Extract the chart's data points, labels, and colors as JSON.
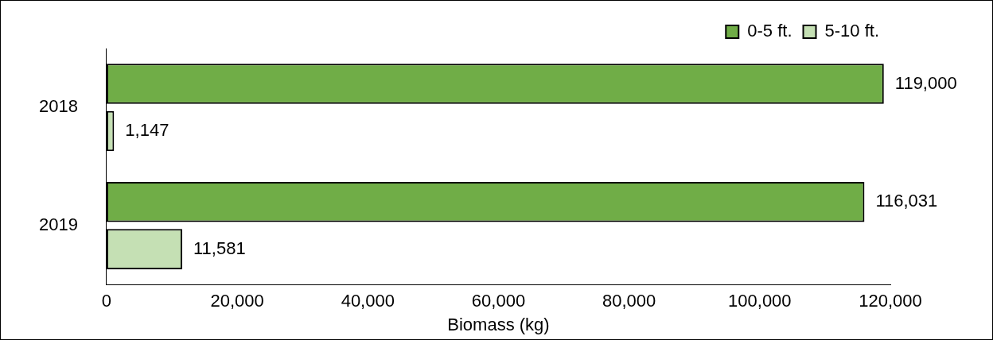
{
  "chart_data": {
    "type": "bar",
    "orientation": "horizontal",
    "categories": [
      "2018",
      "2019"
    ],
    "series": [
      {
        "name": "0-5 ft.",
        "color": "#70ad47",
        "values": [
          119000,
          116031
        ],
        "value_labels": [
          "119,000",
          "116,031"
        ]
      },
      {
        "name": "5-10 ft.",
        "color": "#c5e0b4",
        "values": [
          1147,
          11581
        ],
        "value_labels": [
          "1,147",
          "11,581"
        ]
      }
    ],
    "xlabel": "Biomass (kg)",
    "xlim": [
      0,
      120000
    ],
    "xticks": [
      0,
      {
        "value": 20000,
        "label": "20,000"
      },
      {
        "value": 40000,
        "label": "40,000"
      },
      {
        "value": 60000,
        "label": "60,000"
      },
      {
        "value": 80000,
        "label": "80,000"
      },
      {
        "value": 100000,
        "label": "100,000"
      },
      {
        "value": 120000,
        "label": "120,000"
      }
    ],
    "grid": false,
    "legend": "top right"
  }
}
